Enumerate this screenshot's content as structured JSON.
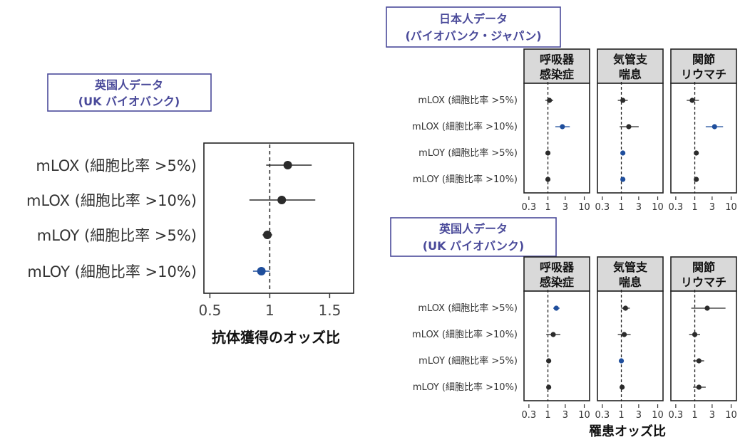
{
  "chart_data": [
    {
      "type": "scatter",
      "subtype": "forest-plot",
      "title": "英国人データ\n(UK バイオバンク)",
      "title_lines": [
        "英国人データ",
        "(UK バイオバンク)"
      ],
      "xlabel": "抗体獲得のオッズ比",
      "xscale": "linear",
      "xlim": [
        0.45,
        1.7
      ],
      "xticks": [
        0.5,
        1,
        1.5
      ],
      "xtick_labels": [
        "0.5",
        "1",
        "1.5"
      ],
      "reference_line": 1,
      "rows": [
        "mLOX (細胞比率 >5%)",
        "mLOX (細胞比率 >10%)",
        "mLOY (細胞比率 >5%)",
        "mLOY (細胞比率 >10%)"
      ],
      "estimates": [
        1.15,
        1.1,
        0.98,
        0.93
      ],
      "ci_low": [
        0.97,
        0.83,
        0.94,
        0.86
      ],
      "ci_high": [
        1.35,
        1.38,
        1.02,
        1.0
      ],
      "highlight": [
        false,
        false,
        false,
        true
      ]
    },
    {
      "type": "scatter",
      "subtype": "forest-plot-facets",
      "title": "日本人データ\n(バイオバンク・ジャパン)",
      "title_lines": [
        "日本人データ",
        "(バイオバンク・ジャパン)"
      ],
      "xscale": "log",
      "xlim": [
        0.22,
        14
      ],
      "xticks": [
        0.3,
        1,
        3,
        10
      ],
      "xtick_labels": [
        "0.3",
        "1",
        "3",
        "10"
      ],
      "reference_line": 1,
      "rows": [
        "mLOX (細胞比率 >5%)",
        "mLOX (細胞比率 >10%)",
        "mLOY (細胞比率 >5%)",
        "mLOY (細胞比率 >10%)"
      ],
      "facets": [
        {
          "label_lines": [
            "呼吸器",
            "感染症"
          ],
          "estimates": [
            1.1,
            2.5,
            1.0,
            1.0
          ],
          "ci_low": [
            0.85,
            1.6,
            0.95,
            0.95
          ],
          "ci_high": [
            1.4,
            4.0,
            1.05,
            1.05
          ],
          "highlight": [
            false,
            true,
            false,
            false
          ]
        },
        {
          "label_lines": [
            "気管支",
            "喘息"
          ],
          "estimates": [
            1.1,
            1.6,
            1.1,
            1.1
          ],
          "ci_low": [
            0.8,
            0.9,
            1.02,
            1.02
          ],
          "ci_high": [
            1.5,
            3.0,
            1.2,
            1.2
          ],
          "highlight": [
            false,
            false,
            true,
            true
          ]
        },
        {
          "label_lines": [
            "関節",
            "リウマチ"
          ],
          "estimates": [
            0.85,
            3.5,
            1.1,
            1.1
          ],
          "ci_low": [
            0.6,
            2.0,
            1.0,
            1.0
          ],
          "ci_high": [
            1.3,
            6.0,
            1.2,
            1.2
          ],
          "highlight": [
            false,
            true,
            false,
            false
          ]
        }
      ]
    },
    {
      "type": "scatter",
      "subtype": "forest-plot-facets",
      "title": "英国人データ\n(UK バイオバンク)",
      "title_lines": [
        "英国人データ",
        "(UK バイオバンク)"
      ],
      "xlabel": "罹患オッズ比",
      "xscale": "log",
      "xlim": [
        0.22,
        14
      ],
      "xticks": [
        0.3,
        1,
        3,
        10
      ],
      "xtick_labels": [
        "0.3",
        "1",
        "3",
        "10"
      ],
      "reference_line": 1,
      "rows": [
        "mLOX (細胞比率 >5%)",
        "mLOX (細胞比率 >10%)",
        "mLOY (細胞比率 >5%)",
        "mLOY (細胞比率 >10%)"
      ],
      "facets": [
        {
          "label_lines": [
            "呼吸器",
            "感染症"
          ],
          "estimates": [
            1.7,
            1.4,
            1.05,
            1.05
          ],
          "ci_low": [
            1.4,
            0.9,
            1.0,
            1.0
          ],
          "ci_high": [
            2.1,
            2.2,
            1.1,
            1.1
          ],
          "highlight": [
            true,
            false,
            false,
            false
          ]
        },
        {
          "label_lines": [
            "気管支",
            "喘息"
          ],
          "estimates": [
            1.3,
            1.2,
            1.0,
            1.05
          ],
          "ci_low": [
            1.0,
            0.8,
            0.96,
            1.0
          ],
          "ci_high": [
            1.7,
            1.8,
            1.05,
            1.1
          ],
          "highlight": [
            false,
            false,
            true,
            false
          ]
        },
        {
          "label_lines": [
            "関節",
            "リウマチ"
          ],
          "estimates": [
            2.2,
            1.0,
            1.3,
            1.3
          ],
          "ci_low": [
            0.8,
            0.7,
            0.9,
            0.9
          ],
          "ci_high": [
            7.0,
            1.4,
            1.8,
            2.0
          ],
          "highlight": [
            false,
            false,
            false,
            false
          ]
        }
      ]
    }
  ],
  "colors": {
    "point": "#2b2b2b",
    "highlight": "#1f4e9c",
    "title": "#4a4a9a",
    "strip_fill": "#d9d9d9"
  }
}
